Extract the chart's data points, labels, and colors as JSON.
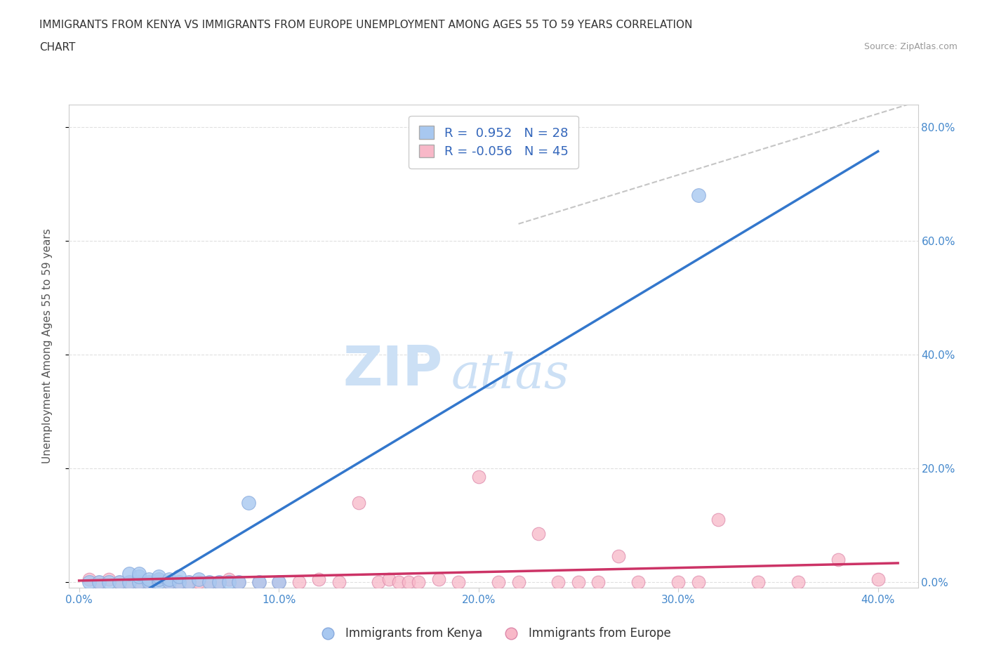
{
  "title_line1": "IMMIGRANTS FROM KENYA VS IMMIGRANTS FROM EUROPE UNEMPLOYMENT AMONG AGES 55 TO 59 YEARS CORRELATION",
  "title_line2": "CHART",
  "source_text": "Source: ZipAtlas.com",
  "ylabel": "Unemployment Among Ages 55 to 59 years",
  "xlabel": "",
  "xlim": [
    -0.005,
    0.42
  ],
  "ylim": [
    -0.01,
    0.84
  ],
  "xticks": [
    0.0,
    0.1,
    0.2,
    0.3,
    0.4
  ],
  "yticks": [
    0.0,
    0.2,
    0.4,
    0.6,
    0.8
  ],
  "xtick_labels": [
    "0.0%",
    "10.0%",
    "20.0%",
    "30.0%",
    "40.0%"
  ],
  "ytick_labels_right": [
    "80.0%",
    "60.0%",
    "40.0%",
    "20.0%",
    "0.0%"
  ],
  "ytick_labels_left": [
    "",
    "",
    "",
    "",
    ""
  ],
  "kenya_R": 0.952,
  "kenya_N": 28,
  "europe_R": -0.056,
  "europe_N": 45,
  "kenya_color": "#a8c8f0",
  "kenya_edge_color": "#88aadd",
  "kenya_line_color": "#3377cc",
  "europe_color": "#f8b8c8",
  "europe_edge_color": "#dd88aa",
  "europe_line_color": "#cc3366",
  "ref_line_color": "#bbbbbb",
  "legend_label_kenya": "Immigrants from Kenya",
  "legend_label_europe": "Immigrants from Europe",
  "watermark_zip": "ZIP",
  "watermark_atlas": "atlas",
  "watermark_color": "#cce0f5",
  "background_color": "#ffffff",
  "grid_color": "#dddddd",
  "kenya_x": [
    0.005,
    0.01,
    0.015,
    0.02,
    0.025,
    0.025,
    0.03,
    0.03,
    0.03,
    0.035,
    0.035,
    0.04,
    0.04,
    0.04,
    0.045,
    0.045,
    0.05,
    0.05,
    0.055,
    0.06,
    0.065,
    0.07,
    0.075,
    0.08,
    0.085,
    0.09,
    0.1,
    0.31
  ],
  "kenya_y": [
    0.0,
    0.0,
    0.0,
    0.0,
    0.0,
    0.015,
    0.0,
    0.01,
    0.015,
    0.0,
    0.005,
    0.0,
    0.005,
    0.01,
    0.0,
    0.005,
    0.0,
    0.01,
    0.0,
    0.005,
    0.0,
    0.0,
    0.0,
    0.0,
    0.14,
    0.0,
    0.0,
    0.68
  ],
  "europe_x": [
    0.005,
    0.01,
    0.015,
    0.02,
    0.025,
    0.03,
    0.035,
    0.04,
    0.045,
    0.05,
    0.055,
    0.06,
    0.065,
    0.07,
    0.075,
    0.08,
    0.09,
    0.1,
    0.11,
    0.12,
    0.13,
    0.14,
    0.15,
    0.155,
    0.16,
    0.165,
    0.17,
    0.18,
    0.19,
    0.2,
    0.21,
    0.22,
    0.23,
    0.24,
    0.25,
    0.26,
    0.27,
    0.28,
    0.3,
    0.31,
    0.32,
    0.34,
    0.36,
    0.38,
    0.4
  ],
  "europe_y": [
    0.005,
    0.0,
    0.005,
    0.0,
    0.0,
    0.0,
    0.0,
    0.005,
    0.0,
    0.0,
    0.0,
    0.0,
    0.0,
    0.0,
    0.005,
    0.0,
    0.0,
    0.0,
    0.0,
    0.005,
    0.0,
    0.14,
    0.0,
    0.005,
    0.0,
    0.0,
    0.0,
    0.005,
    0.0,
    0.185,
    0.0,
    0.0,
    0.085,
    0.0,
    0.0,
    0.0,
    0.045,
    0.0,
    0.0,
    0.0,
    0.11,
    0.0,
    0.0,
    0.04,
    0.005
  ],
  "ref_line_x": [
    0.22,
    0.415
  ],
  "ref_line_y": [
    0.63,
    0.84
  ]
}
